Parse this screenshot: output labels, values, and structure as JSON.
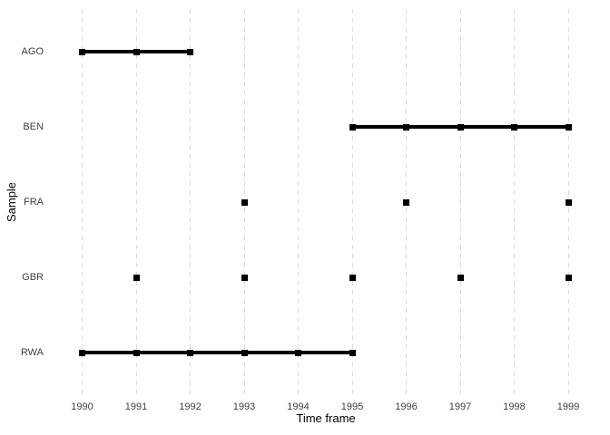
{
  "chart_data": {
    "type": "timeline",
    "title": "",
    "xlabel": "Time frame",
    "ylabel": "Sample",
    "x_ticks": [
      1990,
      1991,
      1992,
      1993,
      1994,
      1995,
      1996,
      1997,
      1998,
      1999
    ],
    "xlim": [
      1990,
      1999
    ],
    "categories": [
      "AGO",
      "BEN",
      "FRA",
      "GBR",
      "RWA"
    ],
    "series": [
      {
        "name": "AGO",
        "points": [
          1990,
          1991,
          1992
        ],
        "segment": [
          1990,
          1992
        ]
      },
      {
        "name": "BEN",
        "points": [
          1995,
          1996,
          1997,
          1998,
          1999
        ],
        "segment": [
          1995,
          1999
        ]
      },
      {
        "name": "FRA",
        "points": [
          1993,
          1996,
          1999
        ],
        "segment": null
      },
      {
        "name": "GBR",
        "points": [
          1991,
          1993,
          1995,
          1997,
          1999
        ],
        "segment": null
      },
      {
        "name": "RWA",
        "points": [
          1990,
          1991,
          1992,
          1993,
          1994,
          1995
        ],
        "segment": [
          1990,
          1995
        ]
      }
    ],
    "grid": "vertical-dashed",
    "legend": "none",
    "marker": "filled-square",
    "colors": {
      "background": "#ffffff",
      "gridline": "#d9d9d9",
      "data": "#000000",
      "tick_text": "#404040",
      "title_text": "#000000"
    }
  }
}
